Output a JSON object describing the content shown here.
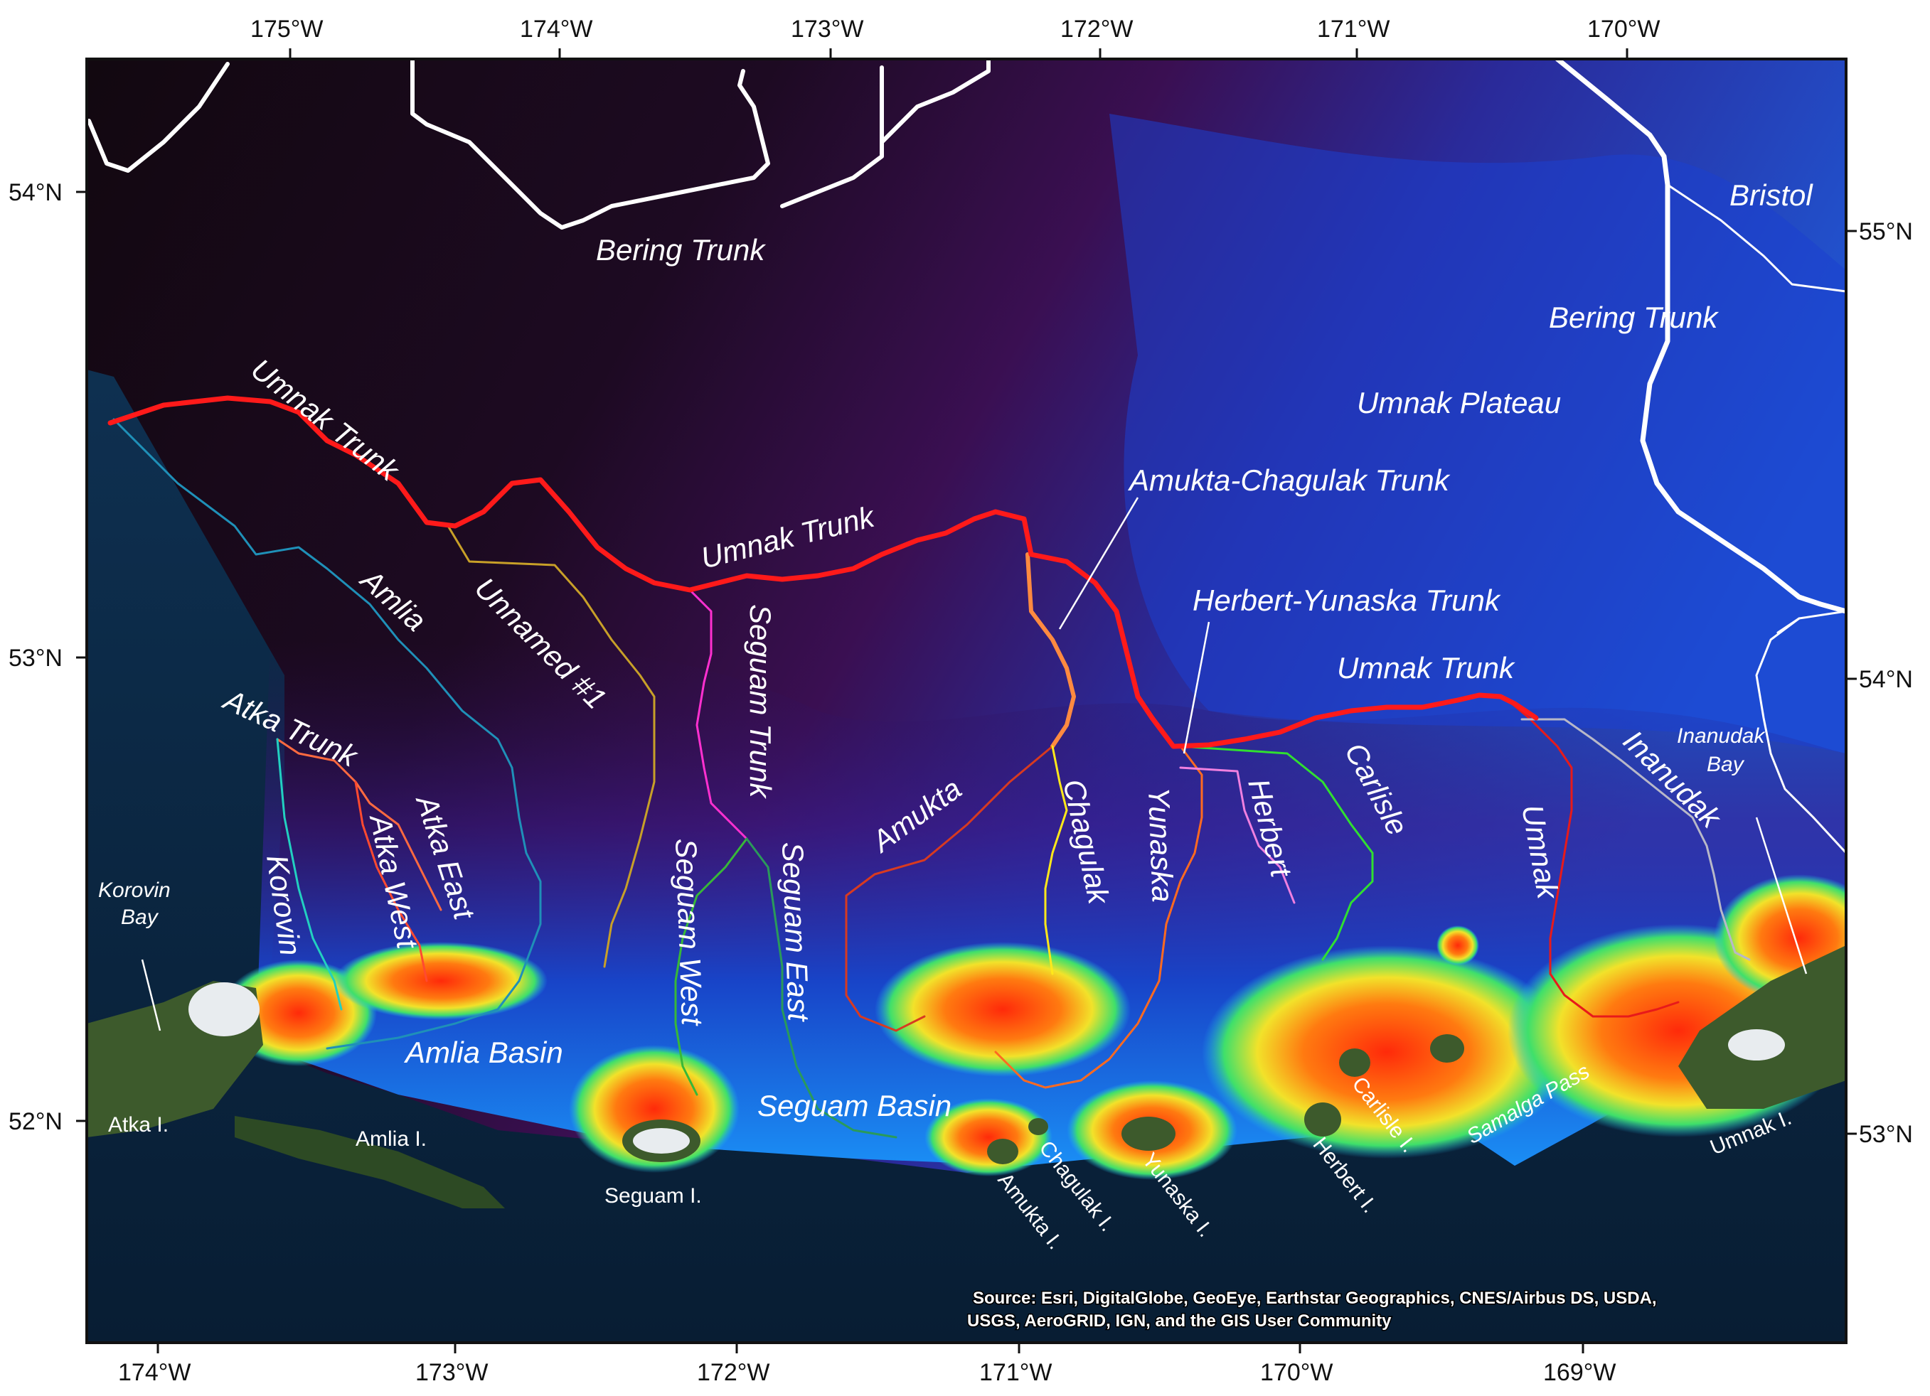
{
  "map": {
    "top_axis": {
      "labels": [
        "175°W",
        "174°W",
        "173°W",
        "172°W",
        "171°W",
        "170°W"
      ]
    },
    "bottom_axis": {
      "labels": [
        "174°W",
        "173°W",
        "172°W",
        "171°W",
        "170°W",
        "169°W"
      ]
    },
    "left_axis": {
      "labels": [
        "54°N",
        "53°N",
        "52°N"
      ]
    },
    "right_axis": {
      "labels": [
        "55°N",
        "54°N",
        "53°N"
      ]
    },
    "features": {
      "bering_trunk_north": "Bering Trunk",
      "bering_trunk_east": "Bering Trunk",
      "bristol": "Bristol",
      "umnak_plateau": "Umnak Plateau",
      "umnak_trunk_west": "Umnak Trunk",
      "umnak_trunk_mid": "Umnak Trunk",
      "umnak_trunk_east": "Umnak Trunk",
      "amukta_chagulak_trunk": "Amukta-Chagulak Trunk",
      "herbert_yunaska_trunk": "Herbert-Yunaska Trunk",
      "amlia": "Amlia",
      "unnamed_1": "Unnamed #1",
      "atka_trunk": "Atka Trunk",
      "atka_east": "Atka East",
      "atka_west": "Atka West",
      "korovin": "Korovin",
      "korovin_bay": "Korovin",
      "korovin_bay_2": "Bay",
      "seguam_trunk": "Seguam Trunk",
      "seguam_west": "Seguam West",
      "seguam_east": "Seguam East",
      "amukta": "Amukta",
      "chagulak": "Chagulak",
      "yunaska": "Yunaska",
      "herbert": "Herbert",
      "carlisle": "Carlisle",
      "umnak": "Umnak",
      "inanudak": "Inanudak",
      "inanudak_bay": "Inanudak",
      "inanudak_bay_2": "Bay",
      "amlia_basin": "Amlia Basin",
      "seguam_basin": "Seguam Basin",
      "samalga_pass": "Samalga Pass"
    },
    "islands": {
      "atka": "Atka I.",
      "amlia": "Amlia I.",
      "seguam": "Seguam I.",
      "amukta": "Amukta I.",
      "chagulak": "Chagulak I.",
      "yunaska": "Yunaska I.",
      "herbert": "Herbert I.",
      "carlisle": "Carlisle I.",
      "umnak": "Umnak I."
    },
    "source_line1": "Source: Esri, DigitalGlobe, GeoEye, Earthstar Geographics, CNES/Airbus DS, USDA,",
    "source_line2": "USGS, AeroGRID, IGN, and the GIS User Community",
    "colors": {
      "umnak_trunk": "#ff1a1a",
      "trunk_lines": "#ffffff",
      "deep": "#140812",
      "shelf": "#ff3a10"
    }
  }
}
